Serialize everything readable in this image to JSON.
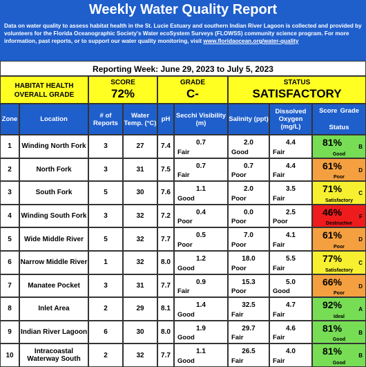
{
  "header": {
    "title": "Weekly Water Quality Report",
    "description": "Data on water quality to assess habitat health in the St. Lucie Estuary and southern Indian River Lagoon is collected and provided by volunteers for the Florida Oceanographic Society's Water ecoSystem Surveys (FLOWSS) community science program.  For more information, past reports, or to support our water quality monitoring, visit",
    "link": "www.floridaocean.org/water-quality"
  },
  "reporting_week": "Reporting Week: June 29, 2023 to July 5, 2023",
  "overall": {
    "label": "HABITAT HEALTH OVERALL GRADE",
    "score_label": "SCORE",
    "score": "72%",
    "grade_label": "GRADE",
    "grade": "C-",
    "status_label": "STATUS",
    "status": "SATISFACTORY"
  },
  "table": {
    "columns": [
      "Zone",
      "Location",
      "# of Reports",
      "Water Temp. (°C)",
      "pH",
      "Secchi Visibility (m)",
      "Salinity (ppt)",
      "Dissolved Oxygen (mg/L)",
      "Score",
      "Grade",
      "Status"
    ],
    "rows": [
      {
        "zone": "1",
        "location": "Winding North Fork",
        "reports": "3",
        "temp": "27",
        "ph": "7.4",
        "secchi": "0.7",
        "secchi_rating": "Fair",
        "salinity": "2.0",
        "salinity_rating": "Good",
        "oxygen": "4.4",
        "oxygen_rating": "Fair",
        "score": "81%",
        "grade": "B",
        "status": "Good",
        "color": "#77dd55"
      },
      {
        "zone": "2",
        "location": "North Fork",
        "reports": "3",
        "temp": "31",
        "ph": "7.5",
        "secchi": "0.7",
        "secchi_rating": "Fair",
        "salinity": "0.7",
        "salinity_rating": "Poor",
        "oxygen": "4.4",
        "oxygen_rating": "Fair",
        "score": "61%",
        "grade": "D",
        "status": "Poor",
        "color": "#f5a040"
      },
      {
        "zone": "3",
        "location": "South Fork",
        "reports": "5",
        "temp": "30",
        "ph": "7.6",
        "secchi": "1.1",
        "secchi_rating": "Good",
        "salinity": "2.0",
        "salinity_rating": "Poor",
        "oxygen": "3.5",
        "oxygen_rating": "Fair",
        "score": "71%",
        "grade": "C",
        "status": "Satisfactory",
        "color": "#f7f030"
      },
      {
        "zone": "4",
        "location": "Winding South Fork",
        "reports": "3",
        "temp": "32",
        "ph": "7.2",
        "secchi": "0.4",
        "secchi_rating": "Poor",
        "salinity": "0.0",
        "salinity_rating": "Poor",
        "oxygen": "2.5",
        "oxygen_rating": "Poor",
        "score": "46%",
        "grade": "F",
        "status": "Destructive",
        "color": "#ee1c1c"
      },
      {
        "zone": "5",
        "location": "Wide Middle River",
        "reports": "5",
        "temp": "32",
        "ph": "7.7",
        "secchi": "0.5",
        "secchi_rating": "Poor",
        "salinity": "7.0",
        "salinity_rating": "Poor",
        "oxygen": "4.1",
        "oxygen_rating": "Fair",
        "score": "61%",
        "grade": "D",
        "status": "Poor",
        "color": "#f5a040"
      },
      {
        "zone": "6",
        "location": "Narrow Middle River",
        "reports": "1",
        "temp": "32",
        "ph": "8.0",
        "secchi": "1.2",
        "secchi_rating": "Good",
        "salinity": "18.0",
        "salinity_rating": "Poor",
        "oxygen": "5.5",
        "oxygen_rating": "Fair",
        "score": "77%",
        "grade": "C",
        "status": "Satisfactory",
        "color": "#f7f030"
      },
      {
        "zone": "7",
        "location": "Manatee Pocket",
        "reports": "3",
        "temp": "31",
        "ph": "7.7",
        "secchi": "0.9",
        "secchi_rating": "Fair",
        "salinity": "15.3",
        "salinity_rating": "Poor",
        "oxygen": "5.0",
        "oxygen_rating": "Good",
        "score": "66%",
        "grade": "D",
        "status": "Poor",
        "color": "#f5a040"
      },
      {
        "zone": "8",
        "location": "Inlet Area",
        "reports": "2",
        "temp": "29",
        "ph": "8.1",
        "secchi": "1.4",
        "secchi_rating": "Good",
        "salinity": "32.5",
        "salinity_rating": "Fair",
        "oxygen": "4.7",
        "oxygen_rating": "Fair",
        "score": "92%",
        "grade": "A",
        "status": "Ideal",
        "color": "#77dd55"
      },
      {
        "zone": "9",
        "location": "Indian River Lagoon",
        "reports": "6",
        "temp": "30",
        "ph": "8.0",
        "secchi": "1.9",
        "secchi_rating": "Good",
        "salinity": "29.7",
        "salinity_rating": "Fair",
        "oxygen": "4.6",
        "oxygen_rating": "Fair",
        "score": "81%",
        "grade": "B",
        "status": "Good",
        "color": "#77dd55"
      },
      {
        "zone": "10",
        "location": "Intracoastal Waterway South",
        "reports": "2",
        "temp": "32",
        "ph": "7.7",
        "secchi": "1.1",
        "secchi_rating": "Good",
        "salinity": "26.5",
        "salinity_rating": "Fair",
        "oxygen": "4.0",
        "oxygen_rating": "Fair",
        "score": "81%",
        "grade": "B",
        "status": "Good",
        "color": "#77dd55"
      }
    ]
  }
}
